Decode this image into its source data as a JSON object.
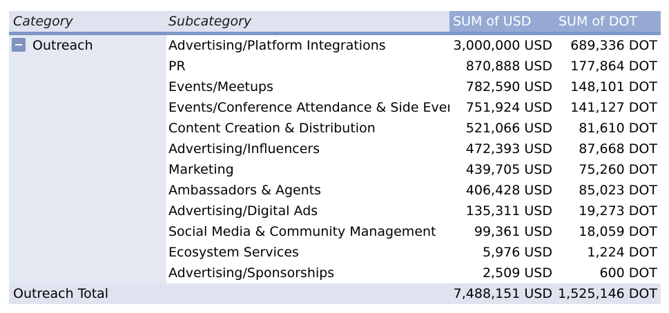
{
  "headers": {
    "category": "Category",
    "subcategory": "Subcategory",
    "usd": "SUM of USD",
    "dot": "SUM of DOT"
  },
  "group": {
    "category": "Outreach",
    "rows": [
      {
        "subcategory": "Advertising/Platform Integrations",
        "usd": "3,000,000 USD",
        "dot": "689,336 DOT"
      },
      {
        "subcategory": "PR",
        "usd": "870,888 USD",
        "dot": "177,864 DOT"
      },
      {
        "subcategory": "Events/Meetups",
        "usd": "782,590 USD",
        "dot": "148,101 DOT"
      },
      {
        "subcategory": "Events/Conference Attendance & Side Events",
        "usd": "751,924 USD",
        "dot": "141,127 DOT"
      },
      {
        "subcategory": "Content Creation & Distribution",
        "usd": "521,066 USD",
        "dot": "81,610 DOT"
      },
      {
        "subcategory": "Advertising/Influencers",
        "usd": "472,393 USD",
        "dot": "87,668 DOT"
      },
      {
        "subcategory": "Marketing",
        "usd": "439,705 USD",
        "dot": "75,260 DOT"
      },
      {
        "subcategory": "Ambassadors & Agents",
        "usd": "406,428 USD",
        "dot": "85,023 DOT"
      },
      {
        "subcategory": "Advertising/Digital Ads",
        "usd": "135,311 USD",
        "dot": "19,273 DOT"
      },
      {
        "subcategory": "Social Media & Community Management",
        "usd": "99,361 USD",
        "dot": "18,059 DOT"
      },
      {
        "subcategory": "Ecosystem Services",
        "usd": "5,976 USD",
        "dot": "1,224 DOT"
      },
      {
        "subcategory": "Advertising/Sponsorships",
        "usd": "2,509 USD",
        "dot": "600 DOT"
      }
    ]
  },
  "total": {
    "label": "Outreach Total",
    "usd": "7,488,151 USD",
    "dot": "1,525,146 DOT"
  },
  "colors": {
    "header_bg": "#dfe3ef",
    "value_header_bg": "#95a9d3",
    "header_rule": "#7f97c7",
    "collapse_button": "#7e93bf"
  }
}
